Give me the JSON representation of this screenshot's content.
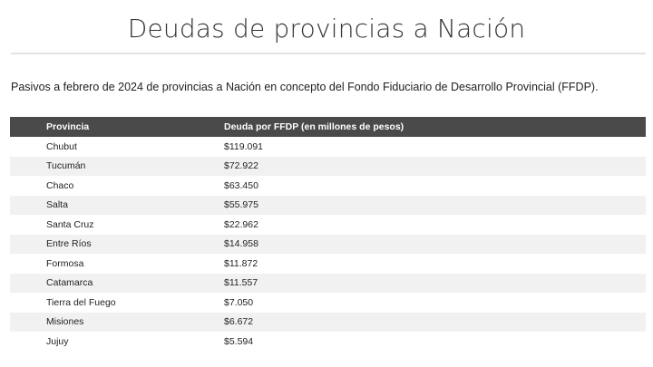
{
  "title": "Deudas de provincias a Nación",
  "subtitle": "Pasivos a febrero de 2024 de provincias a Nación en concepto del Fondo Fiduciario de Desarrollo Provincial (FFDP).",
  "table": {
    "headers": {
      "provincia": "Provincia",
      "deuda": "Deuda por FFDP (en millones de pesos)"
    },
    "rows": [
      {
        "provincia": "Chubut",
        "deuda": "$119.091"
      },
      {
        "provincia": "Tucumán",
        "deuda": "$72.922"
      },
      {
        "provincia": "Chaco",
        "deuda": "$63.450"
      },
      {
        "provincia": "Salta",
        "deuda": "$55.975"
      },
      {
        "provincia": "Santa Cruz",
        "deuda": "$22.962"
      },
      {
        "provincia": "Entre Ríos",
        "deuda": "$14.958"
      },
      {
        "provincia": "Formosa",
        "deuda": "$11.872"
      },
      {
        "provincia": "Catamarca",
        "deuda": "$11.557"
      },
      {
        "provincia": "Tierra del Fuego",
        "deuda": "$7.050"
      },
      {
        "provincia": "Misiones",
        "deuda": "$6.672"
      },
      {
        "provincia": "Jujuy",
        "deuda": "$5.594"
      }
    ]
  },
  "colors": {
    "header_bg": "#4a4a4a",
    "row_alt_bg": "#f1f1f1",
    "rule": "#e3e3e3"
  }
}
